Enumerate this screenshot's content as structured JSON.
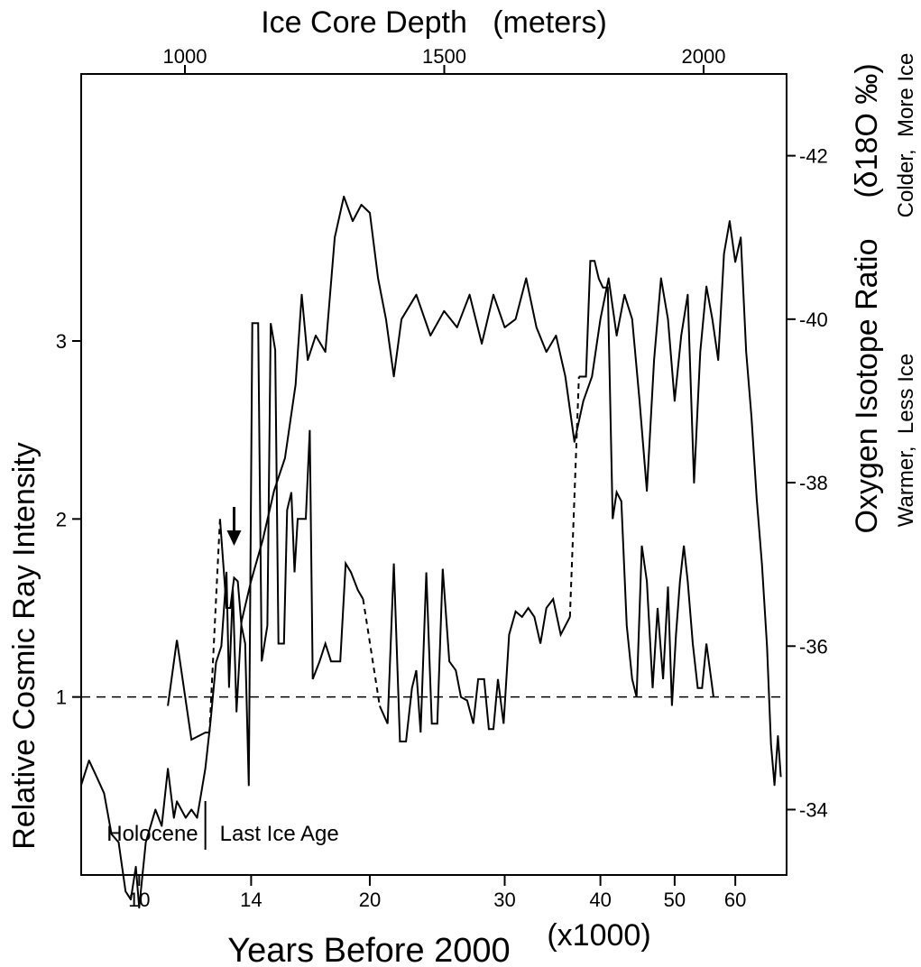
{
  "chart_data": {
    "type": "line",
    "x_axis_bottom": {
      "label": "Years Before 2000",
      "unit_note": "(x1000)",
      "scale": "log",
      "ticks": [
        10,
        14,
        20,
        30,
        40,
        50,
        60
      ],
      "range": [
        8.4,
        70
      ]
    },
    "x_axis_top": {
      "label": "Ice Core Depth   (meters)",
      "ticks": [
        1000,
        1500,
        2000
      ],
      "range": [
        800,
        2160
      ]
    },
    "y_axis_left": {
      "label": "Relative Cosmic Ray Intensity",
      "ticks": [
        1,
        2,
        3
      ],
      "range": [
        0,
        4.5
      ]
    },
    "y_axis_right": {
      "label": "Oxygen Isotope Ratio",
      "label_symbol": "(δ18O ‰)",
      "ticks": [
        -42,
        -40,
        -38,
        -36,
        -34
      ],
      "range": [
        -33.2,
        -43
      ],
      "note_top": "Colder,  More Ice",
      "note_bottom": "Warmer,  Less Ice"
    },
    "annotations": {
      "holocene": "Holocene",
      "last_ice_age": "Last Ice Age",
      "boundary_years_k": 12.2,
      "arrow_years_k": 13.3
    },
    "reference_line": {
      "y": 1,
      "style": "dashed"
    },
    "series": [
      {
        "axis": "right",
        "points": [
          [
            8.4,
            -34.3
          ],
          [
            8.6,
            -34.6
          ],
          [
            8.8,
            -34.4
          ],
          [
            9.0,
            -34.2
          ],
          [
            9.2,
            -33.7
          ],
          [
            9.4,
            -33.6
          ],
          [
            9.6,
            -33.0
          ],
          [
            9.75,
            -32.9
          ],
          [
            9.9,
            -33.3
          ],
          [
            10.0,
            -32.8
          ],
          [
            10.2,
            -33.6
          ],
          [
            10.5,
            -34.0
          ],
          [
            10.7,
            -33.8
          ],
          [
            10.9,
            -34.5
          ],
          [
            11.1,
            -33.9
          ],
          [
            11.2,
            -34.1
          ],
          [
            11.5,
            -33.9
          ],
          [
            11.7,
            -34.0
          ],
          [
            11.9,
            -33.9
          ],
          [
            12.2,
            -34.5
          ],
          [
            12.4,
            -35.1
          ],
          [
            12.6,
            -35.8
          ],
          [
            12.8,
            -36.0
          ],
          [
            13.0,
            -36.9
          ],
          [
            13.1,
            -35.5
          ],
          [
            13.25,
            -36.7
          ],
          [
            13.4,
            -35.2
          ],
          [
            13.6,
            -36.3
          ],
          [
            14.0,
            -36.8
          ],
          [
            14.5,
            -37.3
          ],
          [
            15.0,
            -37.9
          ],
          [
            15.5,
            -38.3
          ],
          [
            16.0,
            -39.2
          ],
          [
            16.3,
            -40.3
          ],
          [
            16.6,
            -39.5
          ],
          [
            17.0,
            -39.8
          ],
          [
            17.5,
            -39.6
          ],
          [
            18.0,
            -41.0
          ],
          [
            18.5,
            -41.5
          ],
          [
            19.0,
            -41.2
          ],
          [
            19.5,
            -41.4
          ],
          [
            20.0,
            -41.3
          ],
          [
            20.5,
            -40.5
          ],
          [
            21.0,
            -40.0
          ],
          [
            21.5,
            -39.3
          ],
          [
            22.0,
            -40.0
          ],
          [
            23.0,
            -40.3
          ],
          [
            24.0,
            -39.8
          ],
          [
            25.0,
            -40.1
          ],
          [
            26.0,
            -39.9
          ],
          [
            27.0,
            -40.3
          ],
          [
            28.0,
            -39.7
          ],
          [
            29.0,
            -40.3
          ],
          [
            30.0,
            -39.9
          ],
          [
            31.0,
            -40.0
          ],
          [
            32.0,
            -40.5
          ],
          [
            33.0,
            -39.9
          ],
          [
            34.0,
            -39.6
          ],
          [
            35.0,
            -39.8
          ],
          [
            36.0,
            -39.3
          ],
          [
            37.0,
            -38.5
          ],
          [
            38.0,
            -39.0
          ],
          [
            39.0,
            -39.3
          ],
          [
            40.0,
            -40.0
          ],
          [
            41.0,
            -40.5
          ],
          [
            42.0,
            -39.8
          ],
          [
            43.0,
            -40.3
          ],
          [
            44.0,
            -40.0
          ],
          [
            45.0,
            -39.0
          ],
          [
            46.0,
            -37.9
          ],
          [
            47.0,
            -39.5
          ],
          [
            48.0,
            -40.5
          ],
          [
            49.0,
            -40.0
          ],
          [
            50.0,
            -39.0
          ],
          [
            51.0,
            -39.8
          ],
          [
            52.0,
            -40.3
          ],
          [
            53.0,
            -38.0
          ],
          [
            54.0,
            -39.6
          ],
          [
            55.0,
            -40.4
          ],
          [
            56.0,
            -40.0
          ],
          [
            57.0,
            -39.5
          ],
          [
            58.0,
            -40.8
          ],
          [
            59.0,
            -41.2
          ],
          [
            60.0,
            -40.7
          ],
          [
            61.0,
            -41.0
          ],
          [
            62.0,
            -39.6
          ],
          [
            63.0,
            -38.8
          ],
          [
            64.0,
            -37.8
          ],
          [
            65.0,
            -37.0
          ],
          [
            66.0,
            -36.0
          ],
          [
            66.8,
            -34.8
          ],
          [
            67.5,
            -34.3
          ],
          [
            68.2,
            -34.9
          ],
          [
            68.8,
            -34.4
          ]
        ]
      },
      {
        "axis": "left",
        "segments": [
          {
            "style": "solid",
            "points": [
              [
                10.9,
                0.95
              ],
              [
                11.2,
                1.32
              ],
              [
                11.7,
                0.76
              ],
              [
                12.2,
                0.8
              ],
              [
                12.35,
                0.8
              ]
            ]
          },
          {
            "style": "dashed",
            "points": [
              [
                12.35,
                0.8
              ],
              [
                12.75,
                2.0
              ]
            ]
          },
          {
            "style": "solid",
            "points": [
              [
                12.75,
                2.0
              ],
              [
                13.0,
                1.5
              ],
              [
                13.15,
                1.5
              ],
              [
                13.3,
                1.67
              ],
              [
                13.45,
                1.65
              ],
              [
                13.6,
                1.4
              ],
              [
                13.75,
                1.3
              ],
              [
                13.9,
                0.5
              ],
              [
                14.05,
                3.1
              ],
              [
                14.3,
                3.1
              ],
              [
                14.45,
                1.2
              ],
              [
                14.7,
                1.4
              ],
              [
                14.85,
                3.1
              ],
              [
                15.05,
                2.95
              ],
              [
                15.2,
                1.3
              ],
              [
                15.45,
                1.3
              ],
              [
                15.6,
                2.05
              ],
              [
                15.8,
                2.15
              ],
              [
                15.95,
                1.7
              ],
              [
                16.1,
                2.0
              ],
              [
                16.5,
                2.0
              ],
              [
                16.7,
                2.5
              ],
              [
                16.85,
                1.1
              ],
              [
                17.2,
                1.2
              ],
              [
                17.5,
                1.3
              ],
              [
                17.8,
                1.2
              ],
              [
                18.3,
                1.2
              ],
              [
                18.6,
                1.75
              ],
              [
                18.9,
                1.7
              ],
              [
                19.3,
                1.6
              ],
              [
                19.6,
                1.55
              ]
            ]
          },
          {
            "style": "dashed",
            "points": [
              [
                19.6,
                1.55
              ],
              [
                20.6,
                0.95
              ]
            ]
          },
          {
            "style": "solid",
            "points": [
              [
                20.6,
                0.95
              ],
              [
                21.1,
                0.85
              ],
              [
                21.5,
                1.75
              ],
              [
                21.9,
                0.75
              ],
              [
                22.3,
                0.75
              ],
              [
                22.7,
                1.05
              ],
              [
                23.0,
                1.15
              ],
              [
                23.3,
                0.8
              ],
              [
                23.7,
                1.7
              ],
              [
                24.1,
                0.85
              ],
              [
                24.5,
                0.85
              ],
              [
                24.9,
                1.72
              ],
              [
                25.4,
                1.2
              ],
              [
                25.9,
                1.15
              ],
              [
                26.3,
                1.0
              ],
              [
                26.8,
                0.98
              ],
              [
                27.3,
                0.85
              ],
              [
                27.7,
                1.1
              ],
              [
                28.2,
                1.1
              ],
              [
                28.6,
                0.82
              ],
              [
                29.0,
                0.82
              ],
              [
                29.4,
                1.1
              ],
              [
                29.9,
                0.85
              ],
              [
                30.4,
                1.35
              ],
              [
                31.0,
                1.48
              ],
              [
                31.6,
                1.45
              ],
              [
                32.2,
                1.5
              ],
              [
                32.8,
                1.45
              ],
              [
                33.4,
                1.3
              ],
              [
                34.0,
                1.5
              ],
              [
                34.7,
                1.55
              ],
              [
                35.5,
                1.35
              ],
              [
                36.5,
                1.45
              ]
            ]
          },
          {
            "style": "dashed",
            "points": [
              [
                36.5,
                1.45
              ],
              [
                37.5,
                2.8
              ]
            ]
          },
          {
            "style": "solid",
            "points": [
              [
                37.5,
                2.8
              ],
              [
                38.3,
                2.8
              ],
              [
                38.8,
                3.45
              ],
              [
                39.3,
                3.45
              ],
              [
                39.8,
                3.35
              ],
              [
                40.3,
                3.3
              ],
              [
                40.9,
                3.3
              ],
              [
                41.5,
                2.0
              ],
              [
                42.0,
                2.15
              ],
              [
                42.6,
                2.1
              ],
              [
                43.3,
                1.4
              ],
              [
                44.0,
                1.1
              ],
              [
                44.6,
                1.0
              ],
              [
                45.3,
                1.85
              ],
              [
                46.0,
                1.65
              ],
              [
                46.8,
                1.05
              ],
              [
                47.5,
                1.5
              ],
              [
                48.3,
                1.1
              ],
              [
                49.0,
                1.62
              ],
              [
                49.6,
                0.95
              ],
              [
                50.2,
                1.35
              ],
              [
                50.8,
                1.65
              ],
              [
                51.4,
                1.85
              ],
              [
                52.0,
                1.65
              ],
              [
                52.8,
                1.3
              ],
              [
                53.6,
                1.05
              ],
              [
                54.3,
                1.05
              ],
              [
                55.0,
                1.3
              ],
              [
                55.6,
                1.15
              ],
              [
                56.2,
                1.0
              ]
            ]
          }
        ]
      }
    ]
  }
}
